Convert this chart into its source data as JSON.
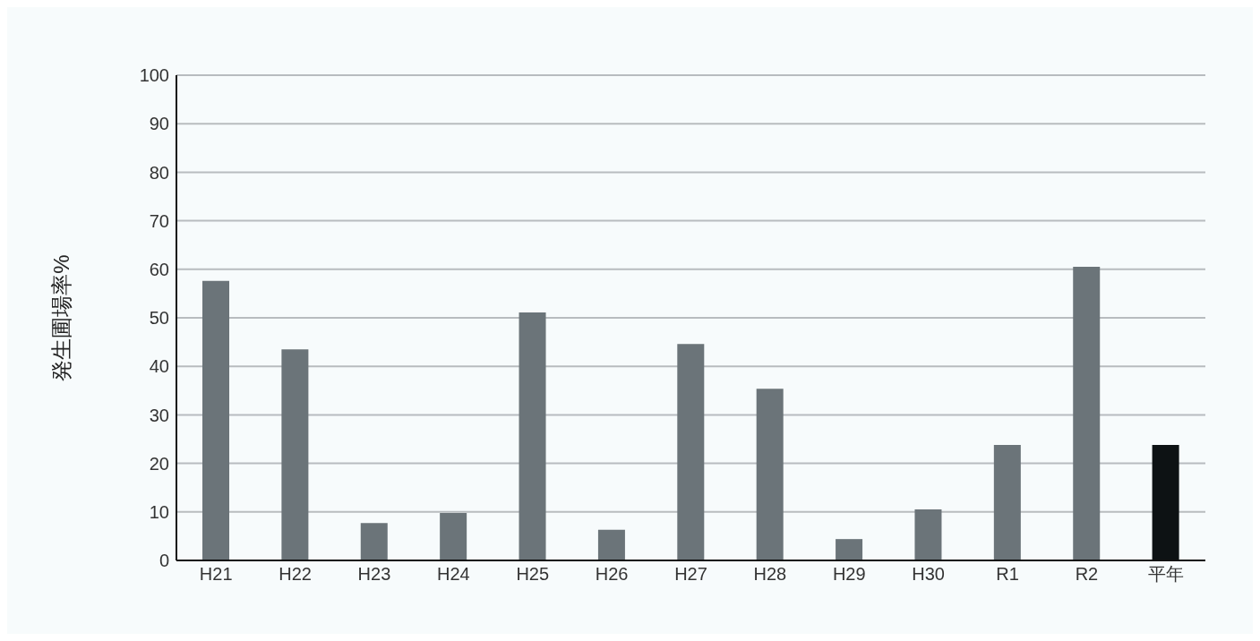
{
  "chart_data": {
    "type": "bar",
    "ylabel": "発生圃場率%",
    "categories": [
      "H21",
      "H22",
      "H23",
      "H24",
      "H25",
      "H26",
      "H27",
      "H28",
      "H29",
      "H30",
      "R1",
      "R2",
      "平年"
    ],
    "values": [
      57.6,
      43.5,
      7.7,
      9.8,
      51.1,
      6.3,
      44.6,
      35.4,
      4.4,
      10.5,
      23.8,
      60.5,
      23.8
    ],
    "colors": [
      "#6b7479",
      "#6b7479",
      "#6b7479",
      "#6b7479",
      "#6b7479",
      "#6b7479",
      "#6b7479",
      "#6b7479",
      "#6b7479",
      "#6b7479",
      "#6b7479",
      "#6b7479",
      "#0d1214"
    ],
    "ylim": [
      0,
      100
    ],
    "yticks": [
      0,
      10,
      20,
      30,
      40,
      50,
      60,
      70,
      80,
      90,
      100
    ],
    "grid": "y"
  }
}
